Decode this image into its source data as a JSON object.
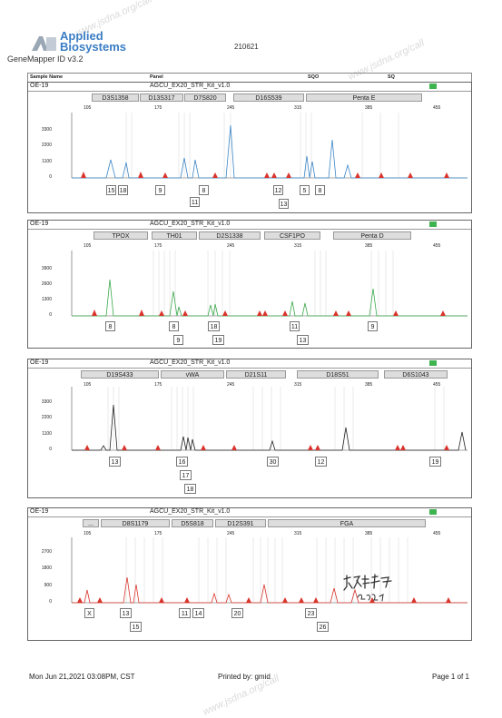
{
  "header": {
    "brand_line1": "Applied",
    "brand_line2": "Biosystems",
    "software": "GeneMapper ID v3.2",
    "run_id": "210621",
    "columns": [
      "Sample Name",
      "Panel",
      "SQO",
      "SQ"
    ]
  },
  "size_ticks": [
    "105",
    "175",
    "245",
    "315",
    "385",
    "455"
  ],
  "panels": [
    {
      "sample": "OE-19",
      "kit": "AGCU_EX20_STR_Kit_v1.0",
      "color": "#3b86c7",
      "markers": [
        "D3S1358",
        "D13S317",
        "D7S820",
        "D16S539",
        "Penta E"
      ],
      "y_ticks": [
        "3300",
        "2200",
        "1100",
        "0"
      ],
      "alleles": [
        "15",
        "18",
        "9",
        "11",
        "8",
        "12",
        "13",
        "5",
        "8"
      ]
    },
    {
      "sample": "OE-19",
      "kit": "AGCU_EX20_STR_Kit_v1.0",
      "color": "#3aa84a",
      "markers": [
        "TPOX",
        "TH01",
        "D2S1338",
        "CSF1PO",
        "Penta D"
      ],
      "y_ticks": [
        "3900",
        "2600",
        "1300",
        "0"
      ],
      "alleles": [
        "8",
        "8",
        "9",
        "18",
        "19",
        "11",
        "13",
        "9"
      ]
    },
    {
      "sample": "OE-19",
      "kit": "AGCU_EX20_STR_Kit_v1.0",
      "color": "#222222",
      "markers": [
        "D19S433",
        "vWA",
        "D21S11",
        "D18S51",
        "D6S1043"
      ],
      "y_ticks": [
        "3300",
        "2200",
        "1100",
        "0"
      ],
      "alleles": [
        "13",
        "16",
        "17",
        "18",
        "30",
        "12",
        "19"
      ]
    },
    {
      "sample": "OE-19",
      "kit": "AGCU_EX20_STR_Kit_v1.0",
      "color": "#d9342b",
      "markers": [
        "...",
        "D8S1179",
        "D5S818",
        "D12S391",
        "FGA"
      ],
      "y_ticks": [
        "2700",
        "1800",
        "900",
        "0"
      ],
      "alleles": [
        "X",
        "13",
        "15",
        "11",
        "14",
        "20",
        "23",
        "26"
      ]
    }
  ],
  "footer": {
    "date": "Mon Jun 21,2021 03:08PM, CST",
    "printed_by": "Printed by: gmid",
    "page": "Page 1 of 1"
  },
  "watermark": "GENETIC TESTING BIOTECHNOLOGY www.jsdna.org/call",
  "signature": "方利新 2021.6.21"
}
